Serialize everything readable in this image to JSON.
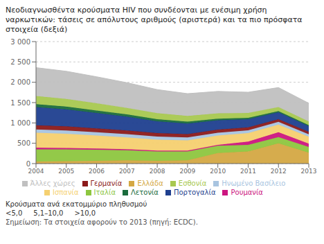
{
  "chart_data": {
    "type": "area",
    "title": "Νεοδιαγνωσθέντα κρούσματα HIV που συνδέονται με ενέσιμη χρήση ναρκωτικών: τάσεις σε απόλυτους αριθμούς (αριστερά) και τα πιο πρόσφατα στοιχεία (δεξιά)",
    "x": [
      2004,
      2005,
      2006,
      2007,
      2008,
      2009,
      2010,
      2011,
      2012,
      2013
    ],
    "series": [
      {
        "name": "Ελλάδα",
        "color": "#D4A843",
        "values": [
          50,
          60,
          70,
          80,
          70,
          80,
          260,
          300,
          500,
          270
        ]
      },
      {
        "name": "Ιταλία",
        "color": "#8DC63F",
        "values": [
          300,
          290,
          270,
          250,
          230,
          220,
          180,
          160,
          150,
          140
        ]
      },
      {
        "name": "Ρουμανία",
        "color": "#CC1580",
        "values": [
          40,
          35,
          30,
          25,
          20,
          20,
          20,
          80,
          120,
          80
        ]
      },
      {
        "name": "Ισπανία",
        "color": "#F5D070",
        "values": [
          370,
          350,
          320,
          290,
          270,
          250,
          230,
          210,
          190,
          170
        ]
      },
      {
        "name": "Ηνωμένο Βασίλειο",
        "color": "#A8C4E0",
        "values": [
          80,
          80,
          80,
          80,
          75,
          75,
          70,
          70,
          65,
          60
        ]
      },
      {
        "name": "Γερμανία",
        "color": "#8B1A1A",
        "values": [
          100,
          100,
          95,
          90,
          85,
          80,
          75,
          70,
          65,
          60
        ]
      },
      {
        "name": "Πορτογαλία",
        "color": "#1F3F8F",
        "values": [
          450,
          420,
          380,
          340,
          290,
          260,
          230,
          200,
          170,
          140
        ]
      },
      {
        "name": "Λετονία",
        "color": "#1A6B3C",
        "values": [
          70,
          65,
          60,
          55,
          50,
          45,
          40,
          35,
          30,
          25
        ]
      },
      {
        "name": "Εσθονία",
        "color": "#A8C850",
        "values": [
          200,
          190,
          180,
          160,
          150,
          140,
          130,
          120,
          100,
          90
        ]
      },
      {
        "name": "Άλλες χώρες",
        "color": "#C0C0C0",
        "values": [
          700,
          680,
          650,
          620,
          580,
          550,
          540,
          510,
          480,
          450
        ]
      }
    ],
    "xlim": [
      2004,
      2013
    ],
    "xticks": [
      2004,
      2005,
      2006,
      2007,
      2008,
      2009,
      2010,
      2011,
      2012,
      2013
    ],
    "ylim": [
      0,
      3000
    ],
    "yticks": [
      0,
      500,
      {
        "value": 1000,
        "label": "1 000"
      },
      {
        "value": 1500,
        "label": "1 500"
      },
      {
        "value": 2000,
        "label": "2 000"
      },
      {
        "value": 2500,
        "label": "2 500"
      },
      {
        "value": 3000,
        "label": "3 000"
      }
    ],
    "stacked": true,
    "grid": true,
    "legend": "bottom",
    "annotations": [
      "Κρούσματα ανά εκατομμύριο πληθυσμού",
      "<5,0",
      "5,1–10,0",
      ">10,0",
      "Σημείωση: Τα στοιχεία αφορούν το 2013 (πηγή: ECDC)."
    ]
  }
}
